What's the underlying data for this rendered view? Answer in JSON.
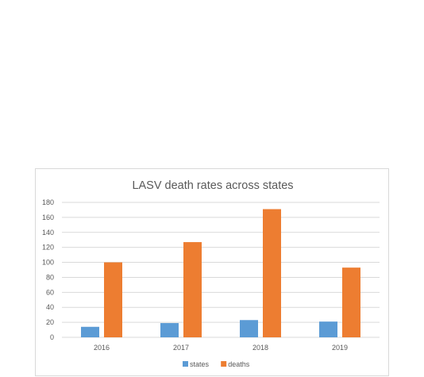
{
  "chart_data": {
    "type": "bar",
    "title": "LASV death rates across states",
    "categories": [
      "2016",
      "2017",
      "2018",
      "2019"
    ],
    "series": [
      {
        "name": "states",
        "values": [
          14,
          19,
          23,
          21
        ],
        "color": "#5b9bd5"
      },
      {
        "name": "deaths",
        "values": [
          100,
          127,
          171,
          93
        ],
        "color": "#ed7d31"
      }
    ],
    "ylim": [
      0,
      180
    ],
    "yticks": [
      0,
      20,
      40,
      60,
      80,
      100,
      120,
      140,
      160,
      180
    ],
    "grid": true,
    "legend": "bottom",
    "xlabel": "",
    "ylabel": ""
  }
}
